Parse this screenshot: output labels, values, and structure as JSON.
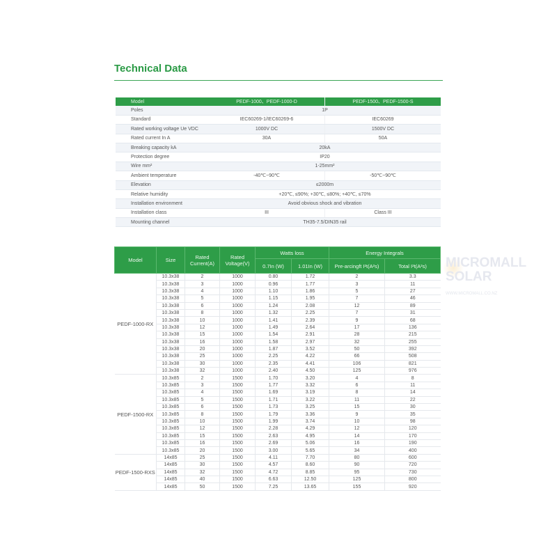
{
  "title": "Technical Data",
  "spec": {
    "header": [
      "Model",
      "PEDF-1000、PEDF-1000-D",
      "PEDF-1500、PEDF-1500-S"
    ],
    "rows": [
      {
        "label": "Poles",
        "values": [
          "1P"
        ]
      },
      {
        "label": "Standard",
        "values": [
          "IEC60269-1/IEC60269-6",
          "IEC60269"
        ]
      },
      {
        "label": "Rated working voltage Ue VDC",
        "values": [
          "1000V DC",
          "1500V DC"
        ]
      },
      {
        "label": "Rated current In A",
        "values": [
          "30A",
          "50A"
        ]
      },
      {
        "label": "Breaking capacity kA",
        "values": [
          "20kA"
        ]
      },
      {
        "label": "Protection degree",
        "values": [
          "IP20"
        ]
      },
      {
        "label": "Wire  mm²",
        "values": [
          "1-25mm²"
        ]
      },
      {
        "label": "Ambient temperature",
        "values": [
          "-40℃~90℃",
          "-50℃~90℃"
        ]
      },
      {
        "label": "Elevation",
        "values": [
          "≤2000m"
        ]
      },
      {
        "label": "Relative humidity",
        "values": [
          "+20℃, ≤90%; +30℃, ≤80%; +40℃, ≤70%"
        ]
      },
      {
        "label": "Installation environment",
        "values": [
          "Avoid obvious shock and vibration"
        ]
      },
      {
        "label": "Installation class",
        "values": [
          "III",
          "Class III"
        ]
      },
      {
        "label": "Mounting channel",
        "values": [
          "TH35-7.5/DIN35 rail"
        ]
      }
    ]
  },
  "fuse": {
    "headers": {
      "model": "Model",
      "size": "Size",
      "current": "Rated Current(A)",
      "voltage": "Rated Voltage(V)",
      "watts": "Watts loss",
      "w07": "0.7In (W)",
      "w101": "1.01In (W)",
      "energy": "Energy Integrals",
      "pre": "Pre-arcingft I²t(A²s)",
      "total": "Total I²t(A²s)"
    },
    "groups": [
      {
        "model": "PEDF-1000-RX",
        "rows": [
          [
            "10.3x38",
            "2",
            "1000",
            "0.80",
            "1.72",
            "2",
            "3.3"
          ],
          [
            "10.3x38",
            "3",
            "1000",
            "0.96",
            "1.77",
            "3",
            "11"
          ],
          [
            "10.3x38",
            "4",
            "1000",
            "1.10",
            "1.86",
            "5",
            "27"
          ],
          [
            "10.3x38",
            "5",
            "1000",
            "1.15",
            "1.95",
            "7",
            "46"
          ],
          [
            "10.3x38",
            "6",
            "1000",
            "1.24",
            "2.08",
            "12",
            "89"
          ],
          [
            "10.3x38",
            "8",
            "1000",
            "1.32",
            "2.25",
            "7",
            "31"
          ],
          [
            "10.3x38",
            "10",
            "1000",
            "1.41",
            "2.39",
            "9",
            "68"
          ],
          [
            "10.3x38",
            "12",
            "1000",
            "1.49",
            "2.64",
            "17",
            "136"
          ],
          [
            "10.3x38",
            "15",
            "1000",
            "1.54",
            "2.91",
            "28",
            "215"
          ],
          [
            "10.3x38",
            "16",
            "1000",
            "1.58",
            "2.97",
            "32",
            "255"
          ],
          [
            "10.3x38",
            "20",
            "1000",
            "1.87",
            "3.52",
            "50",
            "392"
          ],
          [
            "10.3x38",
            "25",
            "1000",
            "2.25",
            "4.22",
            "66",
            "508"
          ],
          [
            "10.3x38",
            "30",
            "1000",
            "2.35",
            "4.41",
            "106",
            "821"
          ],
          [
            "10.3x38",
            "32",
            "1000",
            "2.40",
            "4.50",
            "125",
            "976"
          ]
        ]
      },
      {
        "model": "PEDF-1500-RX",
        "rows": [
          [
            "10.3x85",
            "2",
            "1500",
            "1.70",
            "3.20",
            "4",
            "8"
          ],
          [
            "10.3x85",
            "3",
            "1500",
            "1.77",
            "3.32",
            "6",
            "11"
          ],
          [
            "10.3x85",
            "4",
            "1500",
            "1.69",
            "3.19",
            "8",
            "14"
          ],
          [
            "10.3x85",
            "5",
            "1500",
            "1.71",
            "3.22",
            "11",
            "22"
          ],
          [
            "10.3x85",
            "6",
            "1500",
            "1.73",
            "3.25",
            "15",
            "30"
          ],
          [
            "10.3x85",
            "8",
            "1500",
            "1.79",
            "3.36",
            "9",
            "35"
          ],
          [
            "10.3x85",
            "10",
            "1500",
            "1.99",
            "3.74",
            "10",
            "98"
          ],
          [
            "10.3x85",
            "12",
            "1500",
            "2.28",
            "4.29",
            "12",
            "120"
          ],
          [
            "10.3x85",
            "15",
            "1500",
            "2.63",
            "4.95",
            "14",
            "170"
          ],
          [
            "10.3x85",
            "16",
            "1500",
            "2.69",
            "5.06",
            "16",
            "190"
          ],
          [
            "10.3x85",
            "20",
            "1500",
            "3.00",
            "5.65",
            "34",
            "400"
          ]
        ]
      },
      {
        "model": "PEDF-1500-RXS",
        "rows": [
          [
            "14x85",
            "25",
            "1500",
            "4.11",
            "7.70",
            "80",
            "600"
          ],
          [
            "14x85",
            "30",
            "1500",
            "4.57",
            "8.60",
            "90",
            "720"
          ],
          [
            "14x85",
            "32",
            "1500",
            "4.72",
            "8.85",
            "95",
            "730"
          ],
          [
            "14x85",
            "40",
            "1500",
            "6.63",
            "12.50",
            "125",
            "800"
          ],
          [
            "14x85",
            "50",
            "1500",
            "7.25",
            "13.65",
            "155",
            "920"
          ]
        ]
      }
    ]
  },
  "watermark": {
    "line1": "MICROMALL",
    "line2": "SOLAR",
    "url": "WWW.MICROMALL.CO.NZ"
  }
}
